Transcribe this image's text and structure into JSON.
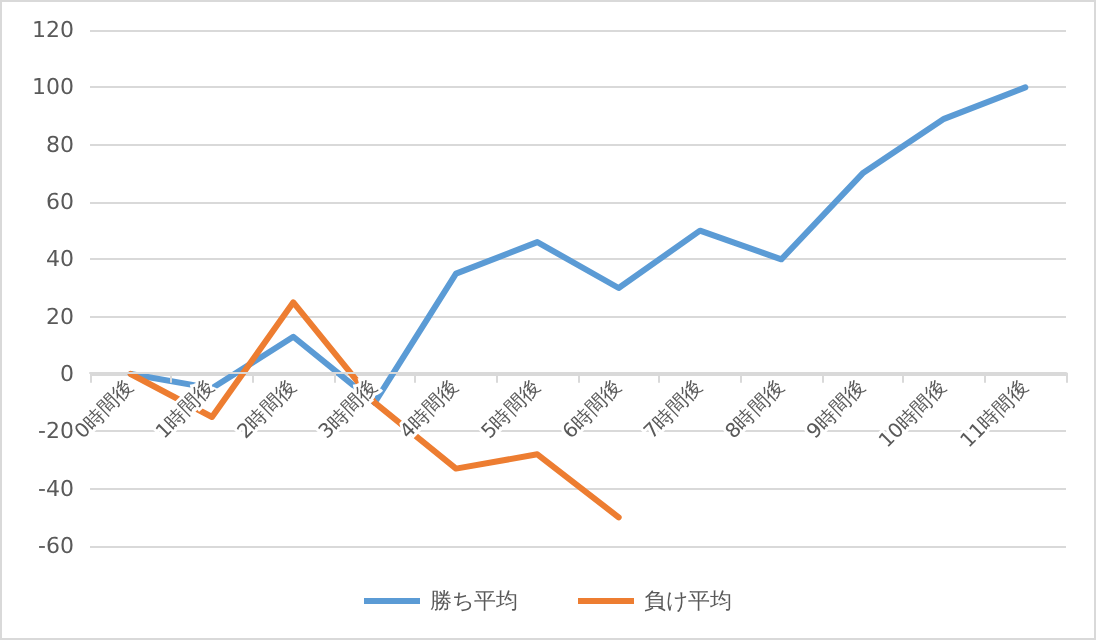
{
  "chart_data": {
    "type": "line",
    "categories": [
      "0時間後",
      "1時間後",
      "2時間後",
      "3時間後",
      "4時間後",
      "5時間後",
      "6時間後",
      "7時間後",
      "8時間後",
      "9時間後",
      "10時間後",
      "11時間後"
    ],
    "series": [
      {
        "name": "勝ち平均",
        "color": "#5b9bd5",
        "values": [
          0,
          -5,
          13,
          -10,
          35,
          46,
          30,
          50,
          40,
          70,
          89,
          100
        ]
      },
      {
        "name": "負け平均",
        "color": "#ed7d31",
        "values": [
          0,
          -15,
          25,
          -10,
          -33,
          -28,
          -50,
          null,
          null,
          null,
          null,
          null
        ]
      }
    ],
    "ylim": [
      -60,
      120
    ],
    "yticks": [
      -60,
      -40,
      -20,
      0,
      20,
      40,
      60,
      80,
      100,
      120
    ],
    "grid": "y",
    "legend": "bottom",
    "marker": "none",
    "line_style": "solid"
  }
}
